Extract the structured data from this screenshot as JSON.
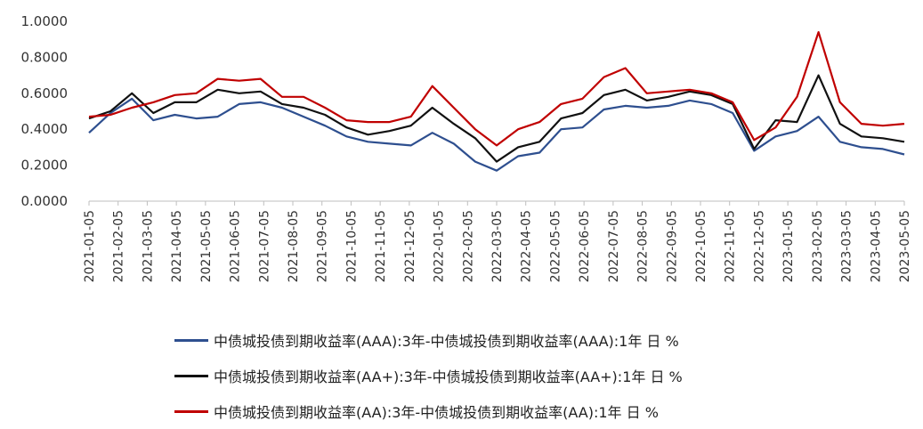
{
  "chart_data": {
    "type": "line",
    "y_tick_labels": [
      "1.0000",
      "0.8000",
      "0.6000",
      "0.4000",
      "0.2000",
      "0.0000"
    ],
    "ylim": [
      0,
      1.0
    ],
    "x_tick_labels": [
      "2021-01-05",
      "2021-02-05",
      "2021-03-05",
      "2021-04-05",
      "2021-05-05",
      "2021-06-05",
      "2021-07-05",
      "2021-08-05",
      "2021-09-05",
      "2021-10-05",
      "2021-11-05",
      "2021-12-05",
      "2022-01-05",
      "2022-02-05",
      "2022-03-05",
      "2022-04-05",
      "2022-05-05",
      "2022-06-05",
      "2022-07-05",
      "2022-08-05",
      "2022-09-05",
      "2022-10-05",
      "2022-11-05",
      "2022-12-05",
      "2023-01-05",
      "2023-02-05",
      "2023-03-05",
      "2023-04-05",
      "2023-05-05"
    ],
    "grid": false,
    "legend_position": "bottom",
    "series": [
      {
        "name": "中债城投债到期收益率(AAA):3年-中债城投债到期收益率(AAA):1年 日 %",
        "color": "#2e4f8f",
        "values": [
          0.38,
          0.49,
          0.57,
          0.45,
          0.48,
          0.46,
          0.47,
          0.54,
          0.55,
          0.52,
          0.47,
          0.42,
          0.36,
          0.33,
          0.32,
          0.31,
          0.38,
          0.32,
          0.22,
          0.17,
          0.25,
          0.27,
          0.4,
          0.41,
          0.51,
          0.53,
          0.52,
          0.53,
          0.56,
          0.54,
          0.49,
          0.28,
          0.36,
          0.39,
          0.47,
          0.33,
          0.3,
          0.29,
          0.26
        ]
      },
      {
        "name": "中债城投债到期收益率(AA+):3年-中债城投债到期收益率(AA+):1年 日 %",
        "color": "#111111",
        "values": [
          0.46,
          0.5,
          0.6,
          0.49,
          0.55,
          0.55,
          0.62,
          0.6,
          0.61,
          0.54,
          0.52,
          0.48,
          0.41,
          0.37,
          0.39,
          0.42,
          0.52,
          0.43,
          0.35,
          0.22,
          0.3,
          0.33,
          0.46,
          0.49,
          0.59,
          0.62,
          0.56,
          0.58,
          0.61,
          0.59,
          0.54,
          0.29,
          0.45,
          0.44,
          0.7,
          0.43,
          0.36,
          0.35,
          0.33
        ]
      },
      {
        "name": "中债城投债到期收益率(AA):3年-中债城投债到期收益率(AA):1年 日 %",
        "color": "#c00000",
        "values": [
          0.47,
          0.48,
          0.52,
          0.55,
          0.59,
          0.6,
          0.68,
          0.67,
          0.68,
          0.58,
          0.58,
          0.52,
          0.45,
          0.44,
          0.44,
          0.47,
          0.64,
          0.52,
          0.4,
          0.31,
          0.4,
          0.44,
          0.54,
          0.57,
          0.69,
          0.74,
          0.6,
          0.61,
          0.62,
          0.6,
          0.55,
          0.34,
          0.41,
          0.58,
          0.94,
          0.55,
          0.43,
          0.42,
          0.43
        ]
      }
    ]
  }
}
